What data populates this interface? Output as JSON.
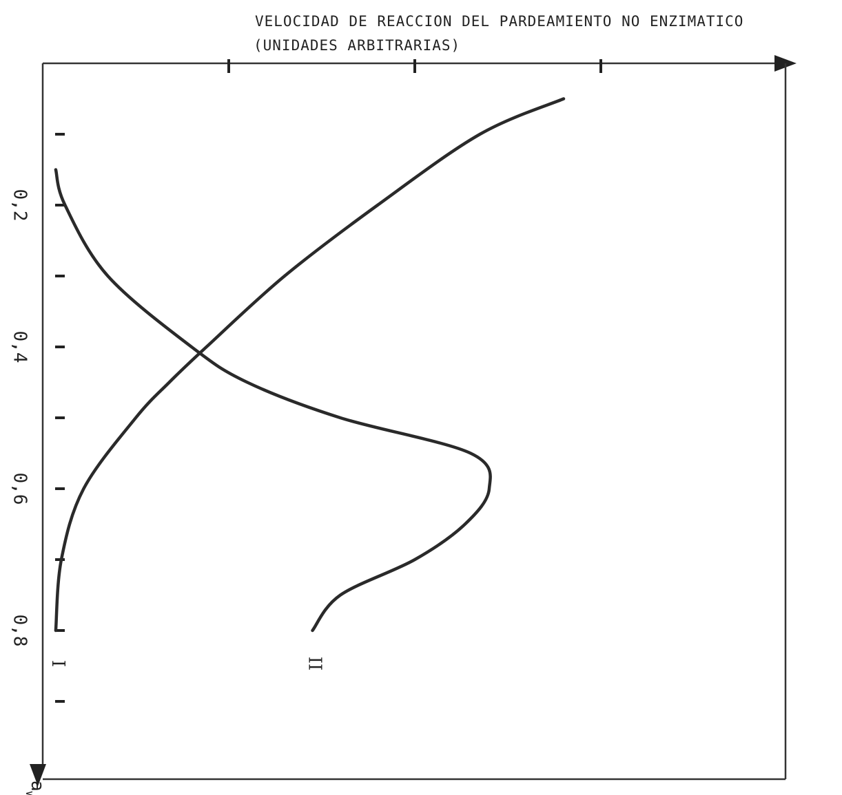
{
  "chart_data": {
    "type": "line",
    "title": "VELOCIDAD DE REACCION DEL PARDEAMIENTO NO ENZIMATICO",
    "subtitle": "(UNIDADES ARBITRARIAS)",
    "aw_axis": {
      "label_main": "a",
      "label_sub": "w",
      "ticks": [
        0.1,
        0.2,
        0.3,
        0.4,
        0.5,
        0.6,
        0.7,
        0.8,
        0.9
      ],
      "tick_labels": [
        {
          "value": 0.2,
          "text": "0,2"
        },
        {
          "value": 0.4,
          "text": "0,4"
        },
        {
          "value": 0.6,
          "text": "0,6"
        },
        {
          "value": 0.8,
          "text": "0,8"
        }
      ],
      "range": [
        0,
        1.0
      ]
    },
    "rate_axis": {
      "ticks": [
        1,
        2,
        3
      ],
      "range": [
        0,
        4.1
      ]
    },
    "series": [
      {
        "name": "I",
        "points": [
          [
            0.05,
            2.8
          ],
          [
            0.1,
            2.35
          ],
          [
            0.2,
            1.8
          ],
          [
            0.3,
            1.3
          ],
          [
            0.4,
            0.88
          ],
          [
            0.45,
            0.68
          ],
          [
            0.5,
            0.5
          ],
          [
            0.6,
            0.22
          ],
          [
            0.7,
            0.1
          ],
          [
            0.8,
            0.07
          ]
        ]
      },
      {
        "name": "II",
        "points": [
          [
            0.15,
            0.07
          ],
          [
            0.2,
            0.12
          ],
          [
            0.3,
            0.35
          ],
          [
            0.4,
            0.8
          ],
          [
            0.45,
            1.1
          ],
          [
            0.5,
            1.6
          ],
          [
            0.55,
            2.3
          ],
          [
            0.6,
            2.4
          ],
          [
            0.65,
            2.27
          ],
          [
            0.7,
            2.0
          ],
          [
            0.75,
            1.6
          ],
          [
            0.8,
            1.45
          ]
        ]
      }
    ]
  }
}
